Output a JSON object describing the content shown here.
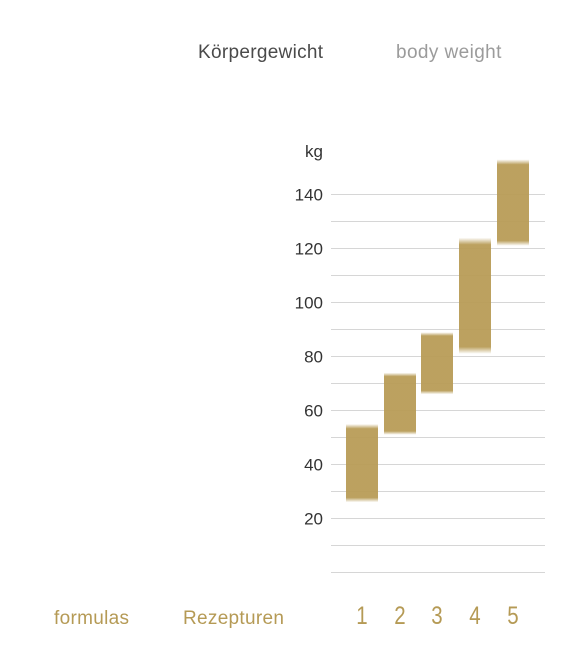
{
  "header": {
    "title_de": "Körpergewicht",
    "title_en": "body weight"
  },
  "footer": {
    "formulas_label": "formulas",
    "rezepturen_label": "Rezepturen"
  },
  "colors": {
    "bar": "#b89c57",
    "grid": "#d6d6d6",
    "tick_text": "#333333",
    "category_text": "#b59a55"
  },
  "chart_data": {
    "type": "bar",
    "subtype": "floating-range",
    "title": "",
    "xlabel": "",
    "ylabel": "kg",
    "categories": [
      "1",
      "2",
      "3",
      "4",
      "5"
    ],
    "ranges": [
      [
        26,
        55
      ],
      [
        51,
        74
      ],
      [
        66,
        89
      ],
      [
        81,
        124
      ],
      [
        121,
        153
      ]
    ],
    "yticks": [
      20,
      40,
      60,
      80,
      100,
      120,
      140
    ],
    "ylim": [
      0,
      150
    ],
    "grid": true,
    "legend": "none"
  }
}
